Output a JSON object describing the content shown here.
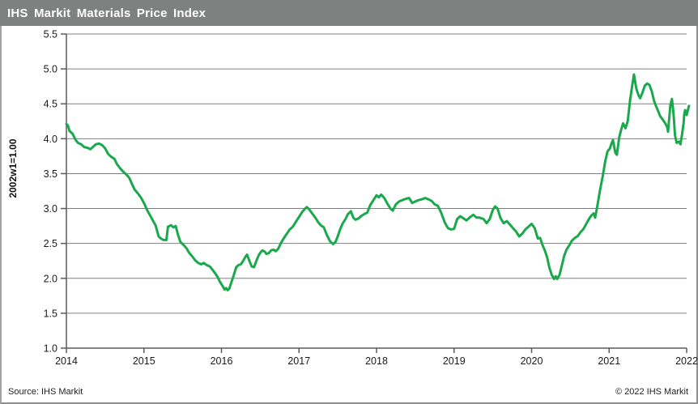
{
  "header": {
    "title": "IHS Markit Materials Price Index"
  },
  "footer": {
    "source": "Source: IHS Markit",
    "copyright": "© 2022  IHS Markit"
  },
  "colors": {
    "header_bg": "#7d817f",
    "line_green": "#1aa84d",
    "grid_gray": "#808080",
    "axis_gray": "#5a5a5a",
    "text_black": "#1a1a1a"
  },
  "chart_data": {
    "type": "line",
    "title": "IHS Markit Materials Price Index",
    "xlabel": "",
    "ylabel": "2002w1=1.00",
    "xlim": [
      2014,
      2022
    ],
    "ylim": [
      1.0,
      5.5
    ],
    "grid": "horizontal",
    "legend": "none",
    "x_ticks": [
      [
        2014,
        "2014"
      ],
      [
        2015,
        "2015"
      ],
      [
        2016,
        "2016"
      ],
      [
        2017,
        "2017"
      ],
      [
        2018,
        "2018"
      ],
      [
        2019,
        "2019"
      ],
      [
        2020,
        "2020"
      ],
      [
        2021,
        "2021"
      ],
      [
        2022,
        "2022"
      ]
    ],
    "y_ticks": [
      [
        1.0,
        "1.0"
      ],
      [
        1.5,
        "1.5"
      ],
      [
        2.0,
        "2.0"
      ],
      [
        2.5,
        "2.5"
      ],
      [
        3.0,
        "3.0"
      ],
      [
        3.5,
        "3.5"
      ],
      [
        4.0,
        "4.0"
      ],
      [
        4.5,
        "4.5"
      ],
      [
        5.0,
        "5.0"
      ],
      [
        5.5,
        "5.5"
      ]
    ],
    "series": [
      {
        "name": "Materials Price Index (2002w1=1.00)",
        "color": "#1aa84d",
        "points": [
          [
            2014.0,
            4.21
          ],
          [
            2014.02,
            4.19
          ],
          [
            2014.04,
            4.11
          ],
          [
            2014.08,
            4.07
          ],
          [
            2014.12,
            3.98
          ],
          [
            2014.15,
            3.94
          ],
          [
            2014.19,
            3.92
          ],
          [
            2014.23,
            3.88
          ],
          [
            2014.27,
            3.87
          ],
          [
            2014.31,
            3.85
          ],
          [
            2014.35,
            3.89
          ],
          [
            2014.38,
            3.92
          ],
          [
            2014.42,
            3.93
          ],
          [
            2014.46,
            3.91
          ],
          [
            2014.5,
            3.86
          ],
          [
            2014.54,
            3.78
          ],
          [
            2014.58,
            3.74
          ],
          [
            2014.62,
            3.71
          ],
          [
            2014.65,
            3.64
          ],
          [
            2014.69,
            3.58
          ],
          [
            2014.73,
            3.53
          ],
          [
            2014.77,
            3.49
          ],
          [
            2014.81,
            3.44
          ],
          [
            2014.85,
            3.34
          ],
          [
            2014.88,
            3.27
          ],
          [
            2014.92,
            3.22
          ],
          [
            2014.96,
            3.16
          ],
          [
            2015.0,
            3.08
          ],
          [
            2015.04,
            2.98
          ],
          [
            2015.08,
            2.9
          ],
          [
            2015.12,
            2.82
          ],
          [
            2015.15,
            2.76
          ],
          [
            2015.17,
            2.68
          ],
          [
            2015.19,
            2.6
          ],
          [
            2015.22,
            2.57
          ],
          [
            2015.25,
            2.55
          ],
          [
            2015.29,
            2.55
          ],
          [
            2015.31,
            2.74
          ],
          [
            2015.35,
            2.76
          ],
          [
            2015.38,
            2.73
          ],
          [
            2015.41,
            2.75
          ],
          [
            2015.44,
            2.62
          ],
          [
            2015.47,
            2.52
          ],
          [
            2015.51,
            2.48
          ],
          [
            2015.55,
            2.43
          ],
          [
            2015.58,
            2.37
          ],
          [
            2015.62,
            2.32
          ],
          [
            2015.66,
            2.26
          ],
          [
            2015.7,
            2.22
          ],
          [
            2015.74,
            2.2
          ],
          [
            2015.77,
            2.22
          ],
          [
            2015.81,
            2.19
          ],
          [
            2015.85,
            2.17
          ],
          [
            2015.88,
            2.13
          ],
          [
            2015.92,
            2.07
          ],
          [
            2015.95,
            2.02
          ],
          [
            2015.98,
            1.95
          ],
          [
            2016.02,
            1.88
          ],
          [
            2016.04,
            1.84
          ],
          [
            2016.06,
            1.86
          ],
          [
            2016.08,
            1.83
          ],
          [
            2016.1,
            1.85
          ],
          [
            2016.13,
            1.95
          ],
          [
            2016.16,
            2.05
          ],
          [
            2016.19,
            2.16
          ],
          [
            2016.22,
            2.19
          ],
          [
            2016.25,
            2.2
          ],
          [
            2016.28,
            2.25
          ],
          [
            2016.31,
            2.31
          ],
          [
            2016.33,
            2.34
          ],
          [
            2016.36,
            2.25
          ],
          [
            2016.39,
            2.17
          ],
          [
            2016.42,
            2.16
          ],
          [
            2016.45,
            2.25
          ],
          [
            2016.48,
            2.33
          ],
          [
            2016.51,
            2.38
          ],
          [
            2016.53,
            2.4
          ],
          [
            2016.56,
            2.38
          ],
          [
            2016.58,
            2.35
          ],
          [
            2016.61,
            2.36
          ],
          [
            2016.64,
            2.4
          ],
          [
            2016.67,
            2.41
          ],
          [
            2016.7,
            2.39
          ],
          [
            2016.73,
            2.42
          ],
          [
            2016.76,
            2.49
          ],
          [
            2016.79,
            2.55
          ],
          [
            2016.82,
            2.6
          ],
          [
            2016.85,
            2.65
          ],
          [
            2016.88,
            2.7
          ],
          [
            2016.92,
            2.74
          ],
          [
            2016.96,
            2.81
          ],
          [
            2017.0,
            2.88
          ],
          [
            2017.04,
            2.95
          ],
          [
            2017.08,
            3.0
          ],
          [
            2017.1,
            3.02
          ],
          [
            2017.13,
            2.99
          ],
          [
            2017.17,
            2.93
          ],
          [
            2017.21,
            2.87
          ],
          [
            2017.25,
            2.8
          ],
          [
            2017.28,
            2.76
          ],
          [
            2017.32,
            2.73
          ],
          [
            2017.36,
            2.62
          ],
          [
            2017.4,
            2.53
          ],
          [
            2017.44,
            2.49
          ],
          [
            2017.47,
            2.52
          ],
          [
            2017.5,
            2.6
          ],
          [
            2017.53,
            2.7
          ],
          [
            2017.56,
            2.78
          ],
          [
            2017.6,
            2.85
          ],
          [
            2017.63,
            2.92
          ],
          [
            2017.67,
            2.96
          ],
          [
            2017.7,
            2.87
          ],
          [
            2017.73,
            2.84
          ],
          [
            2017.77,
            2.86
          ],
          [
            2017.8,
            2.89
          ],
          [
            2017.84,
            2.92
          ],
          [
            2017.88,
            2.94
          ],
          [
            2017.92,
            3.05
          ],
          [
            2017.96,
            3.12
          ],
          [
            2018.0,
            3.19
          ],
          [
            2018.03,
            3.16
          ],
          [
            2018.06,
            3.2
          ],
          [
            2018.1,
            3.15
          ],
          [
            2018.14,
            3.07
          ],
          [
            2018.18,
            3.0
          ],
          [
            2018.21,
            2.97
          ],
          [
            2018.25,
            3.06
          ],
          [
            2018.29,
            3.1
          ],
          [
            2018.33,
            3.12
          ],
          [
            2018.38,
            3.14
          ],
          [
            2018.42,
            3.15
          ],
          [
            2018.46,
            3.08
          ],
          [
            2018.5,
            3.1
          ],
          [
            2018.54,
            3.12
          ],
          [
            2018.58,
            3.13
          ],
          [
            2018.63,
            3.15
          ],
          [
            2018.67,
            3.13
          ],
          [
            2018.71,
            3.11
          ],
          [
            2018.75,
            3.06
          ],
          [
            2018.79,
            3.04
          ],
          [
            2018.83,
            2.95
          ],
          [
            2018.88,
            2.8
          ],
          [
            2018.92,
            2.72
          ],
          [
            2018.96,
            2.7
          ],
          [
            2019.0,
            2.71
          ],
          [
            2019.04,
            2.85
          ],
          [
            2019.08,
            2.89
          ],
          [
            2019.12,
            2.86
          ],
          [
            2019.16,
            2.83
          ],
          [
            2019.21,
            2.88
          ],
          [
            2019.25,
            2.91
          ],
          [
            2019.29,
            2.87
          ],
          [
            2019.33,
            2.87
          ],
          [
            2019.38,
            2.85
          ],
          [
            2019.42,
            2.79
          ],
          [
            2019.46,
            2.85
          ],
          [
            2019.5,
            2.98
          ],
          [
            2019.53,
            3.03
          ],
          [
            2019.56,
            3.0
          ],
          [
            2019.6,
            2.86
          ],
          [
            2019.64,
            2.79
          ],
          [
            2019.68,
            2.82
          ],
          [
            2019.72,
            2.77
          ],
          [
            2019.76,
            2.72
          ],
          [
            2019.8,
            2.67
          ],
          [
            2019.84,
            2.6
          ],
          [
            2019.88,
            2.64
          ],
          [
            2019.92,
            2.7
          ],
          [
            2019.96,
            2.74
          ],
          [
            2020.0,
            2.78
          ],
          [
            2020.04,
            2.72
          ],
          [
            2020.08,
            2.57
          ],
          [
            2020.11,
            2.58
          ],
          [
            2020.14,
            2.48
          ],
          [
            2020.17,
            2.4
          ],
          [
            2020.2,
            2.3
          ],
          [
            2020.23,
            2.15
          ],
          [
            2020.26,
            2.05
          ],
          [
            2020.29,
            1.99
          ],
          [
            2020.31,
            2.03
          ],
          [
            2020.33,
            1.99
          ],
          [
            2020.36,
            2.05
          ],
          [
            2020.39,
            2.18
          ],
          [
            2020.42,
            2.32
          ],
          [
            2020.45,
            2.41
          ],
          [
            2020.49,
            2.48
          ],
          [
            2020.52,
            2.54
          ],
          [
            2020.56,
            2.58
          ],
          [
            2020.6,
            2.61
          ],
          [
            2020.63,
            2.66
          ],
          [
            2020.67,
            2.71
          ],
          [
            2020.7,
            2.77
          ],
          [
            2020.74,
            2.85
          ],
          [
            2020.77,
            2.9
          ],
          [
            2020.8,
            2.93
          ],
          [
            2020.82,
            2.87
          ],
          [
            2020.85,
            3.05
          ],
          [
            2020.88,
            3.25
          ],
          [
            2020.92,
            3.48
          ],
          [
            2020.95,
            3.68
          ],
          [
            2020.98,
            3.82
          ],
          [
            2021.01,
            3.86
          ],
          [
            2021.03,
            3.93
          ],
          [
            2021.05,
            3.98
          ],
          [
            2021.08,
            3.8
          ],
          [
            2021.1,
            3.77
          ],
          [
            2021.13,
            4.02
          ],
          [
            2021.16,
            4.15
          ],
          [
            2021.18,
            4.22
          ],
          [
            2021.21,
            4.15
          ],
          [
            2021.24,
            4.25
          ],
          [
            2021.27,
            4.55
          ],
          [
            2021.3,
            4.78
          ],
          [
            2021.32,
            4.92
          ],
          [
            2021.35,
            4.72
          ],
          [
            2021.38,
            4.62
          ],
          [
            2021.4,
            4.58
          ],
          [
            2021.43,
            4.66
          ],
          [
            2021.46,
            4.76
          ],
          [
            2021.49,
            4.79
          ],
          [
            2021.52,
            4.77
          ],
          [
            2021.55,
            4.68
          ],
          [
            2021.58,
            4.54
          ],
          [
            2021.6,
            4.48
          ],
          [
            2021.63,
            4.4
          ],
          [
            2021.66,
            4.32
          ],
          [
            2021.7,
            4.26
          ],
          [
            2021.73,
            4.21
          ],
          [
            2021.75,
            4.16
          ],
          [
            2021.76,
            4.1
          ],
          [
            2021.79,
            4.48
          ],
          [
            2021.81,
            4.57
          ],
          [
            2021.83,
            4.37
          ],
          [
            2021.85,
            4.05
          ],
          [
            2021.87,
            3.94
          ],
          [
            2021.9,
            3.96
          ],
          [
            2021.92,
            3.92
          ],
          [
            2021.94,
            4.06
          ],
          [
            2021.96,
            4.22
          ],
          [
            2021.97,
            4.36
          ],
          [
            2021.98,
            4.41
          ],
          [
            2022.0,
            4.34
          ],
          [
            2022.01,
            4.39
          ],
          [
            2022.03,
            4.47
          ]
        ]
      }
    ]
  }
}
